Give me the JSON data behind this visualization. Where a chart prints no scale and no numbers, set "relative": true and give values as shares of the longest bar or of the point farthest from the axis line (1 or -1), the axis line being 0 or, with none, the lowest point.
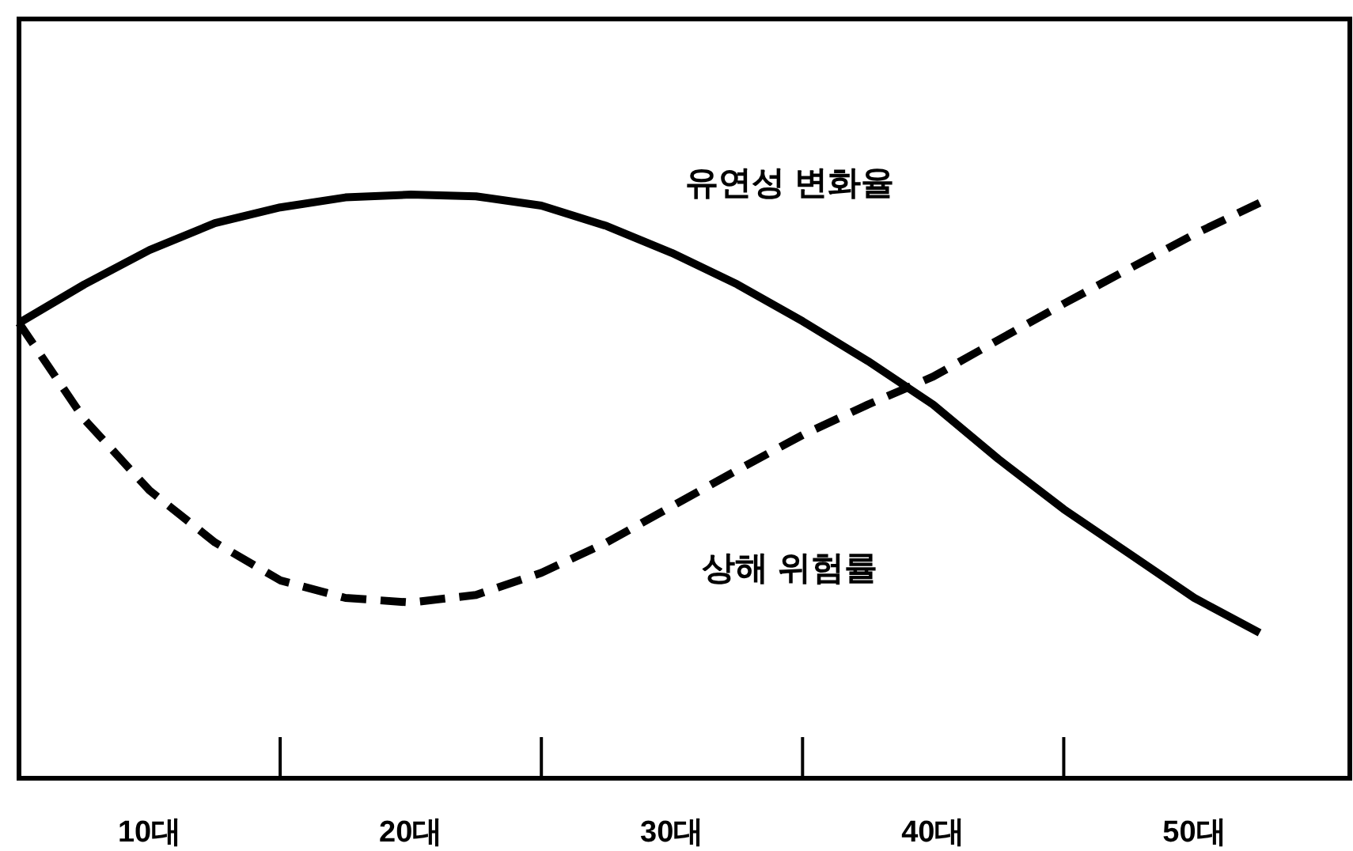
{
  "chart_data": {
    "type": "line",
    "relative": true,
    "marker": "none",
    "categories": [
      null,
      null,
      "10대",
      null,
      null,
      null,
      "20대",
      null,
      null,
      null,
      "30대",
      null,
      null,
      null,
      "40대",
      null,
      null,
      null,
      "50대",
      null
    ],
    "series": [
      {
        "name": "유연성 변화율",
        "color": "#000000",
        "line_style": "solid",
        "values": [
          0.78,
          0.846,
          0.905,
          0.951,
          0.978,
          0.995,
          1.0,
          0.997,
          0.981,
          0.946,
          0.9,
          0.846,
          0.783,
          0.715,
          0.64,
          0.547,
          0.461,
          0.385,
          0.309,
          0.249
        ]
      },
      {
        "name": "상해 위험률",
        "color": "#000000",
        "line_style": "dashed",
        "values": [
          0.78,
          0.615,
          0.493,
          0.404,
          0.339,
          0.309,
          0.301,
          0.314,
          0.352,
          0.404,
          0.466,
          0.528,
          0.588,
          0.64,
          0.688,
          0.751,
          0.813,
          0.873,
          0.932,
          0.986
        ]
      }
    ]
  }
}
